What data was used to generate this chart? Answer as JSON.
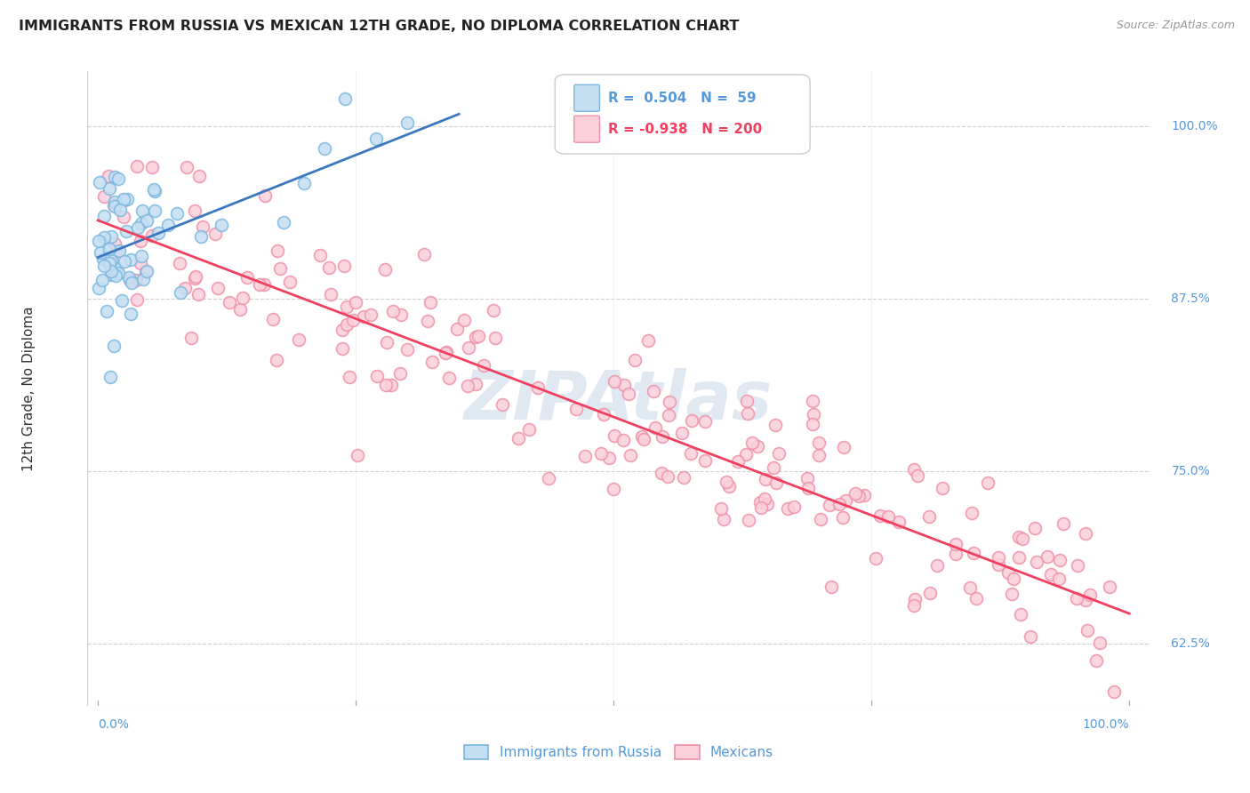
{
  "title": "IMMIGRANTS FROM RUSSIA VS MEXICAN 12TH GRADE, NO DIPLOMA CORRELATION CHART",
  "source": "Source: ZipAtlas.com",
  "ylabel": "12th Grade, No Diploma",
  "legend_label1": "Immigrants from Russia",
  "legend_label2": "Mexicans",
  "R1": 0.504,
  "N1": 59,
  "R2": -0.938,
  "N2": 200,
  "color_blue_edge": "#7ab8e0",
  "color_blue_face": "#c5dff2",
  "color_pink_edge": "#f090a8",
  "color_pink_face": "#fad0db",
  "color_blue_line": "#3a78c0",
  "color_pink_line": "#f04060",
  "color_axis_label": "#5599dd",
  "color_title": "#222222",
  "ytick_values": [
    0.625,
    0.75,
    0.875,
    1.0
  ],
  "ytick_labels": [
    "62.5%",
    "75.0%",
    "87.5%",
    "100.0%"
  ],
  "xlim": [
    0.0,
    1.0
  ],
  "ylim": [
    0.58,
    1.04
  ],
  "watermark_text": "ZIPAtlas",
  "watermark_color": "#c8d8e8"
}
